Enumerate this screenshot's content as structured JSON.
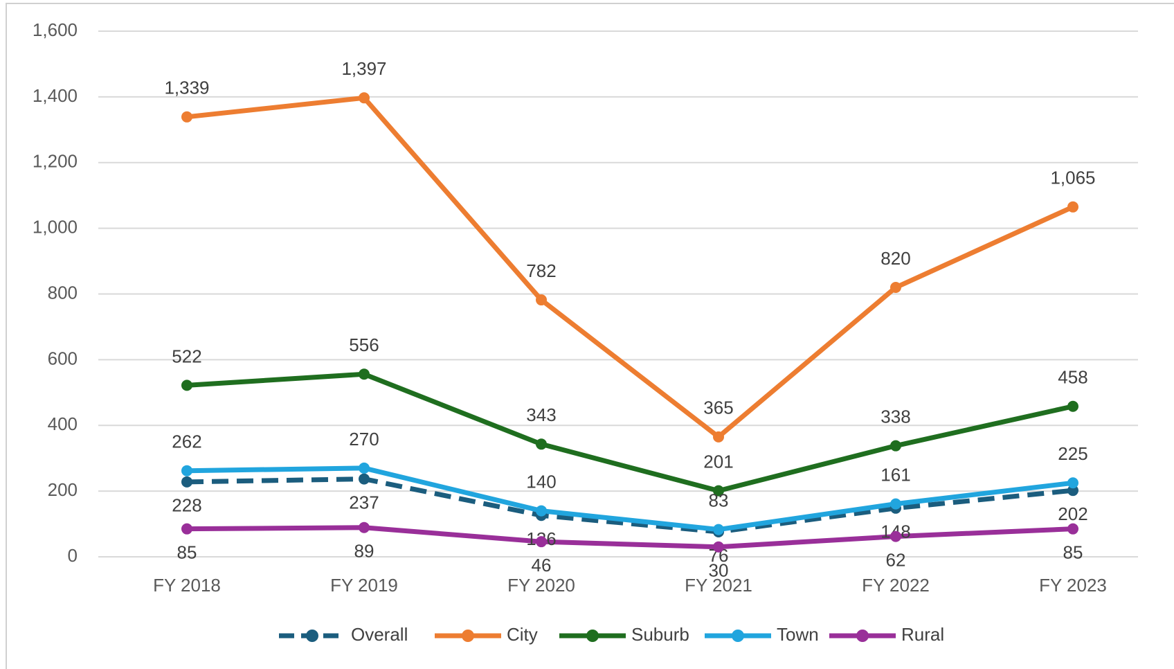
{
  "chart_data": {
    "type": "line",
    "categories": [
      "FY 2018",
      "FY 2019",
      "FY 2020",
      "FY 2021",
      "FY 2022",
      "FY 2023"
    ],
    "series": [
      {
        "name": "Overall",
        "color": "#1b5d7e",
        "dashed": true,
        "values": [
          228,
          237,
          126,
          76,
          148,
          202
        ],
        "label_side": "below"
      },
      {
        "name": "City",
        "color": "#ed7d31",
        "values": [
          1339,
          1397,
          782,
          365,
          820,
          1065
        ],
        "value_labels": [
          "1,339",
          "1,397",
          "782",
          "365",
          "820",
          "1,065"
        ],
        "label_side": "above"
      },
      {
        "name": "Suburb",
        "color": "#1f6e1f",
        "values": [
          522,
          556,
          343,
          201,
          338,
          458
        ],
        "label_side": "above"
      },
      {
        "name": "Town",
        "color": "#21a5de",
        "values": [
          262,
          270,
          140,
          83,
          161,
          225
        ],
        "label_side": "above"
      },
      {
        "name": "Rural",
        "color": "#992f99",
        "values": [
          85,
          89,
          46,
          30,
          62,
          85
        ],
        "label_side": "below"
      }
    ],
    "ylim": [
      0,
      1600
    ],
    "yticks": [
      0,
      200,
      400,
      600,
      800,
      {
        "value": 1000,
        "label": "1,000"
      },
      {
        "value": 1200,
        "label": "1,200"
      },
      {
        "value": 1400,
        "label": "1,400"
      },
      {
        "value": 1600,
        "label": "1,600"
      }
    ],
    "grid": true,
    "legend": "bottom"
  }
}
